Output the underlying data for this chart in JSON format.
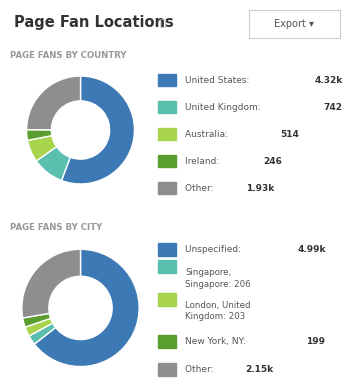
{
  "title": "Page Fan Locations",
  "export_btn": "Export ▾",
  "bg_color": "#ffffff",
  "section1_label": "PAGE FANS BY COUNTRY",
  "section2_label": "PAGE FANS BY CITY",
  "country_values": [
    4320,
    742,
    514,
    246,
    1930
  ],
  "country_colors": [
    "#3d7ab5",
    "#5bbfb0",
    "#a8d44d",
    "#5a9e2f",
    "#8e8e8e"
  ],
  "country_labels": [
    "United States: ",
    "United Kingdom: ",
    "Australia: ",
    "Ireland: ",
    "Other: "
  ],
  "country_bold": [
    "4.32k",
    "742",
    "514",
    "246",
    "1.93k"
  ],
  "city_values": [
    4990,
    206,
    203,
    199,
    2150
  ],
  "city_colors": [
    "#3d7ab5",
    "#5bbfb0",
    "#a8d44d",
    "#5a9e2f",
    "#8e8e8e"
  ],
  "city_labels": [
    "Unspecified: ",
    "Singapore,\nSingapore: ",
    "London, United\nKingdom: ",
    "New York, NY: ",
    "Other: "
  ],
  "city_bold": [
    "4.99k",
    "206",
    "203",
    "199",
    "2.15k"
  ],
  "separator_color": "#dddddd",
  "label_color": "#555555",
  "title_color": "#333333",
  "section_label_color": "#999999",
  "bold_color": "#333333"
}
